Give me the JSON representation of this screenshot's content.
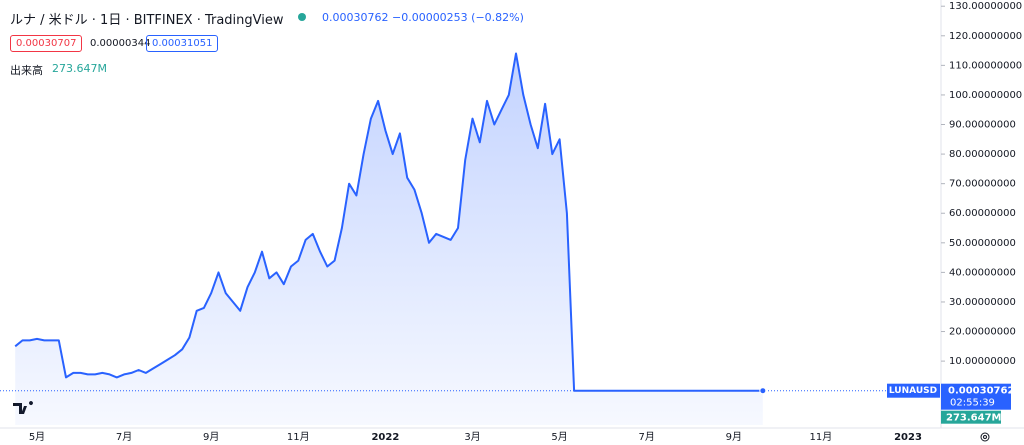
{
  "chart_data": {
    "type": "area",
    "title": "ルナ / 米ドル · 1日 · BITFINEX · TradingView",
    "quote": "0.00030762 −0.00000253 (−0.82%)",
    "bid": "0.00030707",
    "spread": "0.00000344",
    "ask": "0.00031051",
    "volume_label": "出来高",
    "volume": "273.647M",
    "badge": {
      "symbol": "LUNAUSD",
      "price": "0.00030762",
      "countdown": "02:55:39",
      "volume": "273.647M"
    },
    "color": "#2962ff",
    "categories": [
      null,
      null,
      null,
      "5月",
      null,
      null,
      null,
      null,
      null,
      null,
      null,
      null,
      null,
      null,
      null,
      "7月",
      null,
      null,
      null,
      null,
      null,
      null,
      null,
      null,
      null,
      null,
      null,
      "9月",
      null,
      null,
      null,
      null,
      null,
      null,
      null,
      null,
      null,
      null,
      null,
      "11月",
      null,
      null,
      null,
      null,
      null,
      null,
      null,
      null,
      null,
      null,
      null,
      "2022",
      null,
      null,
      null,
      null,
      null,
      null,
      null,
      null,
      null,
      null,
      null,
      "3月",
      null,
      null,
      null,
      null,
      null,
      null,
      null,
      null,
      null,
      null,
      null,
      "5月",
      null,
      null,
      null,
      null,
      null,
      null,
      null,
      null,
      null,
      null,
      null,
      "7月",
      null,
      null,
      null,
      null,
      null,
      null,
      null,
      null,
      null,
      null,
      null,
      "9月",
      null,
      null,
      null,
      null,
      null,
      null,
      null,
      null,
      null,
      null,
      null,
      "11月",
      null,
      null,
      null,
      null,
      null,
      null,
      null,
      null,
      null,
      null,
      null,
      "2023",
      null,
      null,
      null,
      null
    ],
    "values": [
      15,
      17,
      17,
      17.5,
      17,
      17,
      17,
      4.5,
      6,
      6,
      5.5,
      5.5,
      6,
      5.5,
      4.5,
      5.5,
      6,
      7,
      6,
      7.5,
      9,
      10.5,
      12,
      14,
      18,
      27,
      28,
      33,
      40,
      33,
      30,
      27,
      35,
      40,
      47,
      38,
      40,
      36,
      42,
      44,
      51,
      53,
      47,
      42,
      44,
      55,
      70,
      66,
      80,
      92,
      98,
      88,
      80,
      87,
      72,
      68,
      60,
      50,
      53,
      52,
      51,
      55,
      78,
      92,
      84,
      98,
      90,
      95,
      100,
      114,
      100,
      90,
      82,
      97,
      80,
      85,
      60,
      0.0003,
      0.0003,
      0.0003,
      0.0003,
      0.0003,
      0.0003,
      0.0003,
      0.0003,
      0.0003,
      0.0003,
      0.0003,
      0.0003,
      0.0003,
      0.0003,
      0.0003,
      0.0003,
      0.0003,
      0.0003,
      0.0003,
      0.0003,
      0.0003,
      0.0003,
      0.0003,
      0.0003,
      0.0003,
      0.0003,
      0.00030762,
      null,
      null,
      null,
      null,
      null,
      null,
      null,
      null,
      null,
      null,
      null,
      null,
      null,
      null,
      null,
      null,
      null,
      null,
      null,
      null,
      null,
      null,
      null,
      null
    ],
    "ylim": [
      -11.6,
      132.1
    ],
    "yticks": [
      {
        "value": 10,
        "label": "10.00000000"
      },
      {
        "value": 20,
        "label": "20.00000000"
      },
      {
        "value": 30,
        "label": "30.00000000"
      },
      {
        "value": 40,
        "label": "40.00000000"
      },
      {
        "value": 50,
        "label": "50.00000000"
      },
      {
        "value": 60,
        "label": "60.00000000"
      },
      {
        "value": 70,
        "label": "70.00000000"
      },
      {
        "value": 80,
        "label": "80.00000000"
      },
      {
        "value": 90,
        "label": "90.00000000"
      },
      {
        "value": 100,
        "label": "100.00000000"
      },
      {
        "value": 110,
        "label": "110.00000000"
      },
      {
        "value": 120,
        "label": "120.00000000"
      },
      {
        "value": 130,
        "label": "130.00000000"
      }
    ]
  }
}
